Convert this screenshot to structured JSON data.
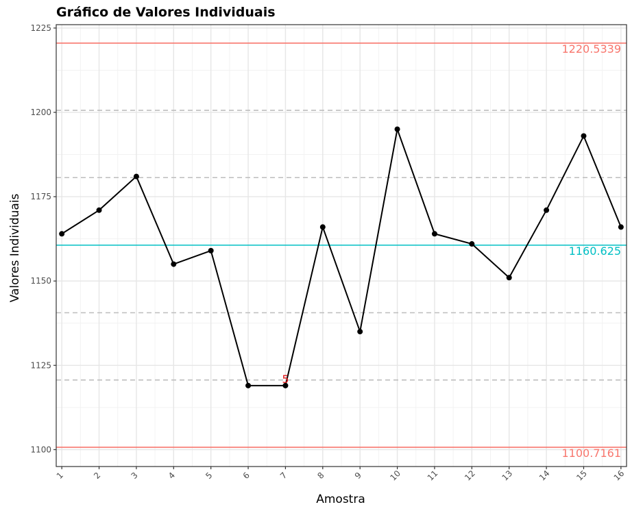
{
  "chart_data": {
    "type": "line",
    "title": "Gráfico de Valores Individuais",
    "xlabel": "Amostra",
    "ylabel": "Valores Individuais",
    "x": [
      1,
      2,
      3,
      4,
      5,
      6,
      7,
      8,
      9,
      10,
      11,
      12,
      13,
      14,
      15,
      16
    ],
    "x_tick_labels": [
      "1",
      "2",
      "3",
      "4",
      "5",
      "6",
      "7",
      "8",
      "9",
      "10",
      "11",
      "12",
      "13",
      "14",
      "15",
      "16"
    ],
    "values": [
      1164,
      1171,
      1181,
      1155,
      1159,
      1119,
      1119,
      1166,
      1135,
      1195,
      1164,
      1161,
      1151,
      1171,
      1193,
      1166
    ],
    "xlim": [
      0.85,
      16.15
    ],
    "ylim": [
      1095,
      1226
    ],
    "y_ticks": [
      1100,
      1125,
      1150,
      1175,
      1200,
      1225
    ],
    "y_tick_labels": [
      "1100",
      "1125",
      "1150",
      "1175",
      "1200",
      "1225"
    ],
    "center_line": {
      "value": 1160.625,
      "label": "1160.625",
      "color": "#00bfc4"
    },
    "upper_control_limit": {
      "value": 1220.5339,
      "label": "1220.5339",
      "color": "#f8766d"
    },
    "lower_control_limit": {
      "value": 1100.7161,
      "label": "1100.7161",
      "color": "#f8766d"
    },
    "sigma_lines": [
      1120.6555,
      1140.5942,
      1180.6558,
      1200.5945
    ],
    "flagged_points": [
      {
        "x": 7,
        "label": "5"
      }
    ],
    "grid": true,
    "line_color": "#000000"
  }
}
